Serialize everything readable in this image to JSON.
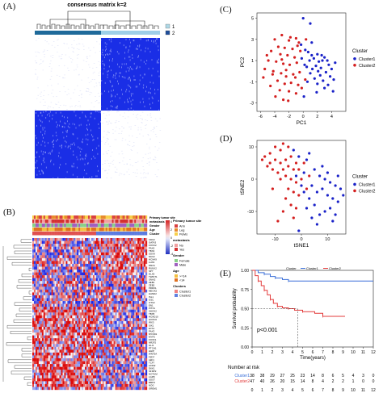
{
  "panels": {
    "A": {
      "label": "(A)",
      "title": "consensus matrix k=2",
      "legend": [
        "1",
        "2"
      ],
      "colors": {
        "c1": "#add8e6",
        "c2": "#1f4e9a",
        "high": "#1a2ee6"
      }
    },
    "B": {
      "label": "(B)",
      "track_labels": [
        "Primary tumor site",
        "metastasis",
        "Gender",
        "Age",
        "Cluster"
      ],
      "legend_titles": [
        "Primary tumor site",
        "metastasis",
        "Gender",
        "Age",
        "Clusters"
      ],
      "legend_items": {
        "site": [
          "Arm",
          "Leg",
          "Pelvis"
        ],
        "meta": [
          "No",
          "Yes"
        ],
        "gender": [
          "Female",
          "Male"
        ],
        "age": [
          ">=14",
          "<14"
        ],
        "cluster": [
          "Cluster1",
          "Cluster2"
        ]
      },
      "scale_ticks": [
        "4",
        "2",
        "0",
        "-2",
        "-4"
      ],
      "gene_labels": [
        "CDX2",
        "GATA3",
        "FOXC2",
        "PAX6",
        "TBX2",
        "SOX9",
        "NKX2",
        "HOXA9",
        "LHX2",
        "MSX1",
        "RUNX2",
        "SP7",
        "DLX5",
        "TWIST1",
        "SNAI2",
        "ZEB1",
        "ZEB2",
        "PRRX1",
        "MEOX2",
        "HAND2",
        "ISL1",
        "GSC",
        "OTX2",
        "EN1",
        "PITX1",
        "SHOX2",
        "TBX5",
        "HOXD10",
        "HOXC6",
        "IRX3",
        "SIX1",
        "EYA1",
        "PAX3",
        "MYOD1",
        "MYF5",
        "FOXF1",
        "NR2F2",
        "GLI1",
        "PTCH1",
        "HHIP",
        "WNT5A",
        "FZD7",
        "LEF1",
        "TCF7",
        "AXIN2",
        "DKK1",
        "SFRP2",
        "NOTUM",
        "LGR5",
        "SOST",
        "BMP4",
        "NOG",
        "GREM1"
      ]
    },
    "C": {
      "label": "(C)"
    },
    "D": {
      "label": "(D)"
    },
    "E": {
      "label": "(E)",
      "pvalue": "p<0.001",
      "risk_title": "Number at risk",
      "risk_rows": [
        {
          "name": "Cluster1",
          "values": [
            "38",
            "38",
            "29",
            "27",
            "25",
            "23",
            "14",
            "8",
            "6",
            "5",
            "4",
            "3",
            "0"
          ]
        },
        {
          "name": "Cluster2",
          "values": [
            "47",
            "40",
            "26",
            "20",
            "15",
            "14",
            "8",
            "4",
            "2",
            "2",
            "1",
            "0",
            "0"
          ]
        }
      ]
    }
  },
  "chart_data": [
    {
      "type": "scatter",
      "panel": "C",
      "xlabel": "PC1",
      "ylabel": "PC2",
      "xlim": [
        -6.5,
        6
      ],
      "ylim": [
        -3.8,
        5.5
      ],
      "xticks": [
        -6,
        -4,
        -2,
        0,
        2,
        4
      ],
      "yticks": [
        -3,
        -1,
        1,
        3,
        5
      ],
      "legend_title": "Cluster",
      "series": [
        {
          "name": "Cluster1",
          "color": "#1a22c8",
          "points": [
            [
              0,
              5
            ],
            [
              1,
              4.5
            ],
            [
              -0.3,
              2.5
            ],
            [
              0.3,
              2
            ],
            [
              0.7,
              1.8
            ],
            [
              1.2,
              1.5
            ],
            [
              1.5,
              1.2
            ],
            [
              0.9,
              1
            ],
            [
              2,
              1.6
            ],
            [
              2.6,
              1.5
            ],
            [
              3,
              1.3
            ],
            [
              3.4,
              1
            ],
            [
              2.2,
              0.9
            ],
            [
              1.8,
              0.5
            ],
            [
              2.5,
              0.3
            ],
            [
              3.6,
              0.6
            ],
            [
              4,
              0.2
            ],
            [
              3.2,
              -0.1
            ],
            [
              2.4,
              -0.4
            ],
            [
              2.8,
              -0.9
            ],
            [
              3.8,
              -0.5
            ],
            [
              4.3,
              -0.8
            ],
            [
              1.6,
              -0.7
            ],
            [
              1,
              -0.2
            ],
            [
              0.5,
              0.4
            ],
            [
              2,
              -1.2
            ],
            [
              3,
              -1.6
            ],
            [
              4.5,
              0.8
            ],
            [
              1.2,
              2.7
            ],
            [
              0.2,
              0.6
            ],
            [
              1.9,
              -2
            ],
            [
              3.5,
              -1.3
            ],
            [
              2.1,
              0
            ],
            [
              0.6,
              -1
            ],
            [
              -0.2,
              1.2
            ],
            [
              1.3,
              0.2
            ],
            [
              4.2,
              -1.9
            ],
            [
              2.7,
              1
            ],
            [
              0.1,
              -2.4
            ]
          ]
        },
        {
          "name": "Cluster2",
          "color": "#d41f1f",
          "points": [
            [
              -4,
              3
            ],
            [
              -3,
              3.4
            ],
            [
              -2,
              2.9
            ],
            [
              -1,
              3.1
            ],
            [
              -3.5,
              2.3
            ],
            [
              -2.6,
              2.2
            ],
            [
              -1.5,
              2.1
            ],
            [
              -0.8,
              2.4
            ],
            [
              -4.5,
              1.9
            ],
            [
              -3.2,
              1.6
            ],
            [
              -2.2,
              1.5
            ],
            [
              -1.2,
              1.3
            ],
            [
              -0.4,
              1.9
            ],
            [
              -4.9,
              1
            ],
            [
              -3.8,
              0.9
            ],
            [
              -2.8,
              0.7
            ],
            [
              -1.9,
              0.6
            ],
            [
              -0.9,
              0.8
            ],
            [
              -5.4,
              0.2
            ],
            [
              -4.2,
              0
            ],
            [
              -3.1,
              -0.2
            ],
            [
              -2.4,
              -0.5
            ],
            [
              -1.4,
              -0.3
            ],
            [
              -0.5,
              -0.1
            ],
            [
              -3.6,
              -0.9
            ],
            [
              -2.6,
              -1.2
            ],
            [
              -1.7,
              -1.1
            ],
            [
              -0.7,
              -1.3
            ],
            [
              -4.6,
              -1.4
            ],
            [
              -3.3,
              -1.8
            ],
            [
              -2,
              -1.9
            ],
            [
              -1,
              -2.1
            ],
            [
              -3.9,
              -2.4
            ],
            [
              -2.8,
              -2.7
            ],
            [
              -5.6,
              -0.6
            ],
            [
              -0.2,
              -1.6
            ],
            [
              0.4,
              3
            ],
            [
              -1.8,
              3.2
            ],
            [
              -2.4,
              0.1
            ],
            [
              -3,
              1.1
            ],
            [
              -4.3,
              -0.3
            ],
            [
              -1.1,
              -0.6
            ],
            [
              -0.6,
              2.7
            ],
            [
              -5.1,
              1.5
            ],
            [
              -2.1,
              -2.8
            ],
            [
              0.3,
              -0.8
            ]
          ]
        }
      ]
    },
    {
      "type": "scatter",
      "panel": "D",
      "xlabel": "tSNE1",
      "ylabel": "tSNE2",
      "xlim": [
        -17,
        17
      ],
      "ylim": [
        -17,
        12
      ],
      "xticks": [
        -10,
        0,
        10
      ],
      "yticks": [
        -10,
        0,
        10
      ],
      "legend_title": "Cluster",
      "series": [
        {
          "name": "Cluster1",
          "color": "#1a22c8",
          "points": [
            [
              -3,
              9
            ],
            [
              3,
              8
            ],
            [
              -1,
              7
            ],
            [
              2,
              6
            ],
            [
              5,
              3
            ],
            [
              7,
              1
            ],
            [
              9,
              0
            ],
            [
              11,
              -1
            ],
            [
              13,
              -2
            ],
            [
              15,
              -3
            ],
            [
              8,
              -3
            ],
            [
              10,
              -5
            ],
            [
              12,
              -6
            ],
            [
              14,
              -7
            ],
            [
              6,
              -4
            ],
            [
              4,
              -2
            ],
            [
              11,
              -9
            ],
            [
              9,
              -10
            ],
            [
              7,
              -11
            ],
            [
              13,
              -11
            ],
            [
              5,
              -8
            ],
            [
              3,
              -6
            ],
            [
              1,
              -4
            ],
            [
              0,
              -2
            ],
            [
              2,
              -9
            ],
            [
              4,
              -12
            ],
            [
              6,
              -14
            ],
            [
              -1,
              -16
            ],
            [
              14,
              1
            ],
            [
              16,
              -5
            ],
            [
              10,
              2
            ],
            [
              8,
              4
            ],
            [
              -2,
              1
            ],
            [
              12,
              -13
            ],
            [
              1,
              2
            ]
          ]
        },
        {
          "name": "Cluster2",
          "color": "#d41f1f",
          "points": [
            [
              -15,
              6
            ],
            [
              -14,
              7
            ],
            [
              -12,
              8
            ],
            [
              -10,
              10
            ],
            [
              -8,
              9
            ],
            [
              -7,
              11
            ],
            [
              -5,
              10
            ],
            [
              -12,
              5
            ],
            [
              -10,
              6
            ],
            [
              -8,
              5
            ],
            [
              -6,
              6
            ],
            [
              -4,
              7
            ],
            [
              -2,
              5
            ],
            [
              -11,
              3
            ],
            [
              -9,
              2
            ],
            [
              -7,
              3
            ],
            [
              -5,
              4
            ],
            [
              -3,
              3
            ],
            [
              -1,
              3
            ],
            [
              -8,
              0
            ],
            [
              -6,
              1
            ],
            [
              -4,
              0
            ],
            [
              -2,
              -1
            ],
            [
              0,
              0
            ],
            [
              -5,
              -3
            ],
            [
              -3,
              -4
            ],
            [
              -1,
              -5
            ],
            [
              -6,
              -6
            ],
            [
              -4,
              -8
            ],
            [
              -2,
              -9
            ],
            [
              -7,
              -10
            ],
            [
              -3,
              -12
            ],
            [
              -9,
              -13
            ],
            [
              -13,
              4
            ],
            [
              1,
              5
            ],
            [
              3,
              1
            ],
            [
              -11,
              -3
            ],
            [
              2,
              -3
            ]
          ]
        }
      ]
    },
    {
      "type": "line",
      "panel": "E",
      "xlabel": "Time(years)",
      "ylabel": "Survival probability",
      "xlim": [
        0,
        12
      ],
      "ylim": [
        0,
        1
      ],
      "xticks": [
        0,
        1,
        2,
        3,
        4,
        5,
        6,
        7,
        8,
        9,
        10,
        11,
        12
      ],
      "yticks": [
        0,
        0.25,
        0.5,
        0.75,
        1
      ],
      "yticklabels": [
        "0.00",
        "0.25",
        "0.50",
        "0.75",
        "1.00"
      ],
      "legend_title": "Cluster",
      "series": [
        {
          "name": "Cluster1",
          "color": "#3a6fd8",
          "points": [
            [
              0,
              1
            ],
            [
              0.6,
              0.97
            ],
            [
              1.2,
              0.95
            ],
            [
              1.8,
              0.92
            ],
            [
              2.3,
              0.9
            ],
            [
              3,
              0.88
            ],
            [
              3.6,
              0.86
            ],
            [
              12,
              0.86
            ]
          ]
        },
        {
          "name": "Cluster2",
          "color": "#e33b3b",
          "points": [
            [
              0,
              1
            ],
            [
              0.3,
              0.93
            ],
            [
              0.6,
              0.86
            ],
            [
              0.9,
              0.8
            ],
            [
              1.2,
              0.74
            ],
            [
              1.5,
              0.68
            ],
            [
              1.8,
              0.62
            ],
            [
              2.1,
              0.57
            ],
            [
              2.5,
              0.53
            ],
            [
              3,
              0.51
            ],
            [
              3.6,
              0.5
            ],
            [
              4.2,
              0.48
            ],
            [
              5,
              0.46
            ],
            [
              6.2,
              0.44
            ],
            [
              7,
              0.4
            ],
            [
              9.2,
              0.4
            ]
          ]
        }
      ],
      "median_marker": {
        "x": 4.5,
        "y": 0.5
      }
    }
  ]
}
